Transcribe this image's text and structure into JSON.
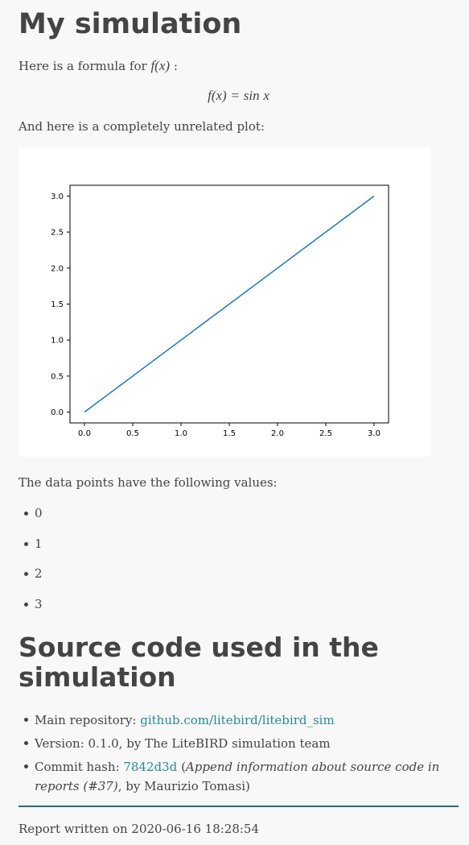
{
  "title": "My simulation",
  "intro": {
    "text": "Here is a formula for",
    "math_inline": "f(x)",
    "suffix": ":"
  },
  "formula": {
    "lhs": "f(x)",
    "eq": "=",
    "fn": "sin",
    "arg": "x"
  },
  "plot_intro": "And here is a completely unrelated plot:",
  "chart_data": {
    "type": "line",
    "x": [
      0,
      1,
      2,
      3
    ],
    "series": [
      {
        "values": [
          0,
          1,
          2,
          3
        ],
        "color": "#1f77b4"
      }
    ],
    "xlim": [
      -0.15,
      3.15
    ],
    "ylim": [
      -0.15,
      3.15
    ],
    "xticks": [
      "0.0",
      "0.5",
      "1.0",
      "1.5",
      "2.0",
      "2.5",
      "3.0"
    ],
    "yticks": [
      "0.0",
      "0.5",
      "1.0",
      "1.5",
      "2.0",
      "2.5",
      "3.0"
    ],
    "grid": false
  },
  "values_intro": "The data points have the following values:",
  "values": [
    "0",
    "1",
    "2",
    "3"
  ],
  "source_title": "Source code used in the simulation",
  "source": {
    "repo_label": "Main repository:",
    "repo_link": "github.com/litebird/litebird_sim",
    "version_text": "Version: 0.1.0, by The LiteBIRD simulation team",
    "commit_label": "Commit hash:",
    "commit_hash": "7842d3d",
    "commit_open": "(",
    "commit_message": "Append information about source code in reports (#37)",
    "commit_author": ", by Maurizio Tomasi)"
  },
  "footer": "Report written on 2020-06-16 18:28:54"
}
